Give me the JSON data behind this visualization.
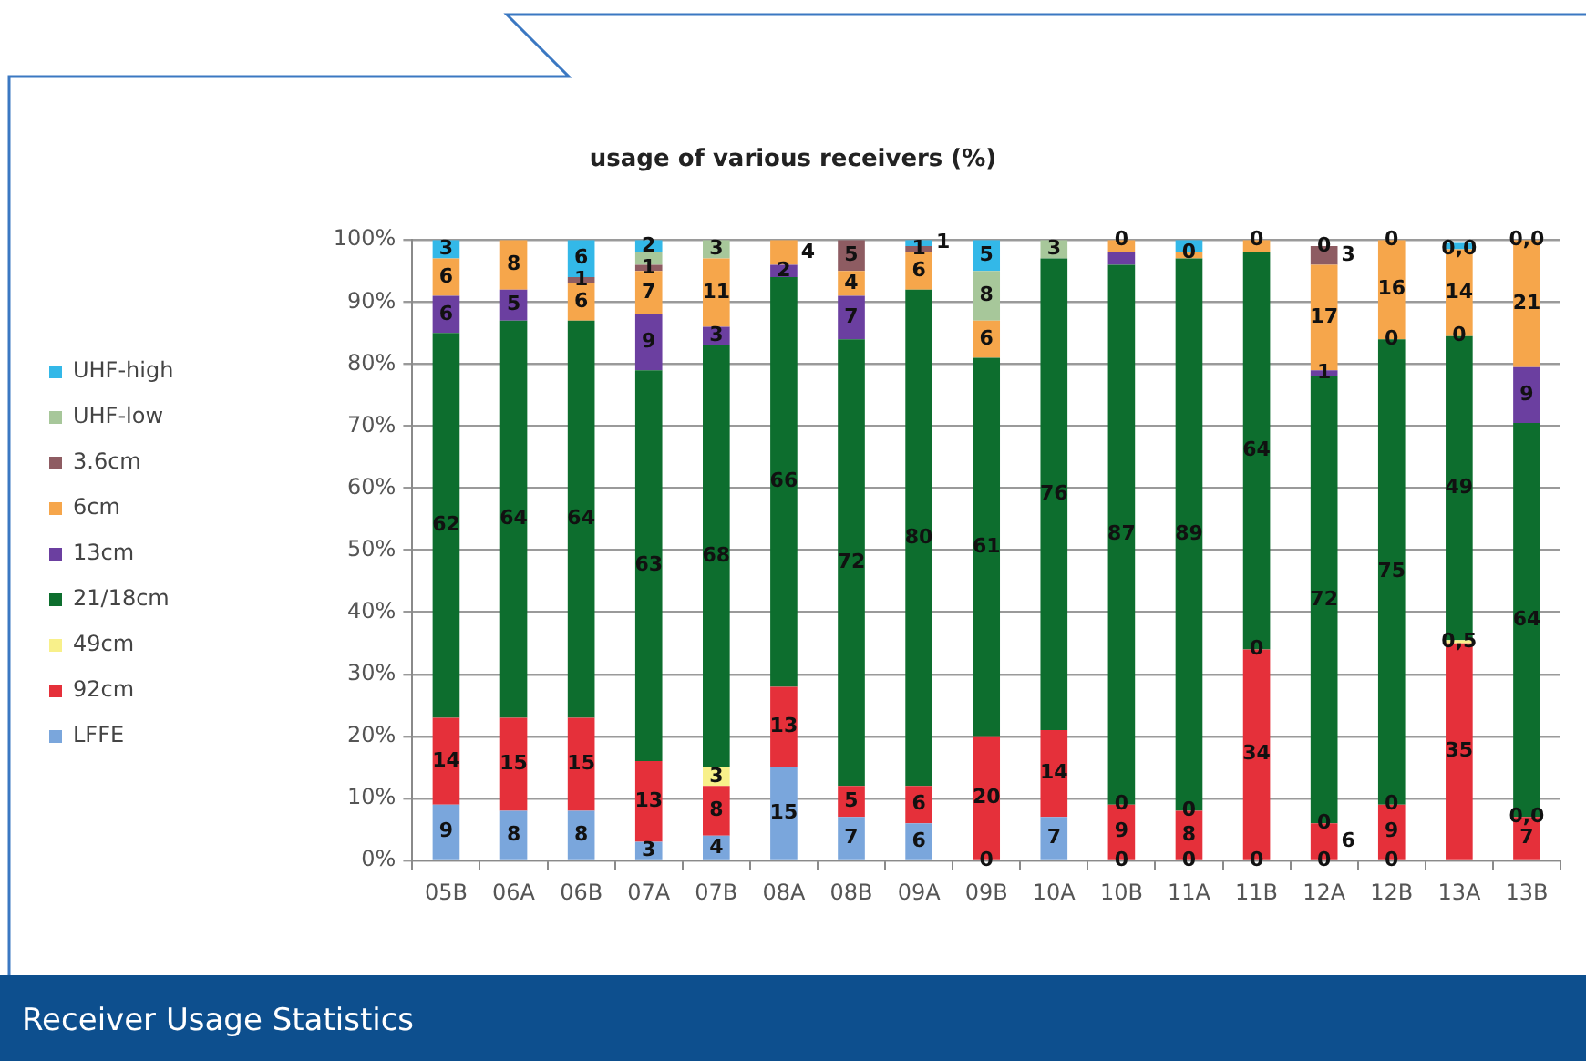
{
  "chart_data": {
    "type": "bar",
    "title": "usage of various receivers (%)",
    "categories": [
      "05B",
      "06A",
      "06B",
      "07A",
      "07B",
      "08A",
      "08B",
      "09A",
      "09B",
      "10A",
      "10B",
      "11A",
      "11B",
      "12A",
      "12B",
      "13A",
      "13B"
    ],
    "series": [
      {
        "name": "LFFE",
        "color": "#7aa6dc",
        "values": [
          9,
          8,
          8,
          3,
          4,
          15,
          7,
          6,
          0,
          7,
          0,
          0,
          0,
          0,
          0,
          null,
          null
        ],
        "value_labels": [
          "9",
          "8",
          "8",
          "3",
          "4",
          "15",
          "7",
          "6",
          null,
          "7",
          null,
          null,
          null,
          null,
          null,
          null,
          null
        ]
      },
      {
        "name": "92cm",
        "color": "#e5303a",
        "values": [
          14,
          15,
          15,
          13,
          8,
          13,
          5,
          6,
          20,
          14,
          9,
          8,
          34,
          6,
          9,
          35,
          7
        ],
        "value_labels": [
          "14",
          "15",
          "15",
          "13",
          "8",
          "13",
          "5",
          "6",
          "20",
          "14",
          "9",
          "8",
          "34",
          "6",
          "9",
          "35",
          "7"
        ]
      },
      {
        "name": "49cm",
        "color": "#f8f08a",
        "values": [
          null,
          null,
          null,
          null,
          3,
          null,
          null,
          null,
          null,
          null,
          0,
          0,
          0,
          0,
          0,
          0.5,
          0
        ],
        "value_labels": [
          null,
          null,
          null,
          null,
          "3",
          null,
          null,
          null,
          null,
          null,
          null,
          null,
          null,
          null,
          null,
          "0,5",
          null
        ]
      },
      {
        "name": "21/18cm",
        "color": "#0d6e2e",
        "values": [
          62,
          64,
          64,
          63,
          68,
          66,
          72,
          80,
          61,
          76,
          87,
          89,
          64,
          72,
          75,
          49,
          63.5
        ],
        "value_labels": [
          "62",
          "64",
          "64",
          "63",
          "68",
          "66",
          "72",
          "80",
          "61",
          "76",
          "87",
          "89",
          "64",
          "72",
          "75",
          "49",
          "64"
        ]
      },
      {
        "name": "13cm",
        "color": "#6b3fa0",
        "values": [
          6,
          5,
          null,
          9,
          3,
          2,
          7,
          null,
          null,
          null,
          2,
          null,
          null,
          1,
          0,
          0,
          9
        ],
        "value_labels": [
          "6",
          "5",
          null,
          "9",
          "3",
          "2",
          "7",
          null,
          null,
          null,
          null,
          null,
          null,
          "1",
          null,
          null,
          "9"
        ]
      },
      {
        "name": "6cm",
        "color": "#f6a64b",
        "values": [
          6,
          8,
          6,
          7,
          11,
          4,
          4,
          6,
          6,
          null,
          2,
          1,
          2,
          17,
          16,
          14,
          20.5
        ],
        "value_labels": [
          "6",
          "8",
          "6",
          "7",
          "11",
          "4",
          "4",
          "6",
          "6",
          null,
          null,
          null,
          null,
          "17",
          "16",
          "14",
          "21"
        ]
      },
      {
        "name": "3.6cm",
        "color": "#8e5c62",
        "values": [
          null,
          null,
          1,
          1,
          null,
          null,
          5,
          1,
          null,
          null,
          null,
          null,
          null,
          3,
          null,
          null,
          null
        ],
        "value_labels": [
          null,
          null,
          "1",
          "1",
          null,
          null,
          "5",
          "1",
          null,
          null,
          null,
          null,
          null,
          "3",
          null,
          null,
          null
        ]
      },
      {
        "name": "UHF-low",
        "color": "#a7c79a",
        "values": [
          null,
          null,
          null,
          2,
          3,
          null,
          null,
          null,
          8,
          3,
          null,
          0,
          null,
          null,
          null,
          0,
          null
        ],
        "value_labels": [
          null,
          null,
          null,
          null,
          "3",
          null,
          null,
          null,
          "8",
          "3",
          null,
          null,
          null,
          null,
          null,
          null,
          null
        ]
      },
      {
        "name": "UHF-high",
        "color": "#33b8e8",
        "values": [
          3,
          null,
          6,
          2,
          null,
          null,
          null,
          1,
          5,
          null,
          0,
          2,
          0,
          0,
          0,
          1,
          0
        ],
        "value_labels": [
          "3",
          null,
          "6",
          "2",
          null,
          null,
          null,
          "1",
          "5",
          null,
          null,
          null,
          null,
          null,
          null,
          null,
          null
        ]
      }
    ],
    "stacked": true,
    "ylim": [
      0,
      100
    ],
    "yticks": [
      {
        "value": 0,
        "label": "0%"
      },
      {
        "value": 10,
        "label": "10%"
      },
      {
        "value": 20,
        "label": "20%"
      },
      {
        "value": 30,
        "label": "30%"
      },
      {
        "value": 40,
        "label": "40%"
      },
      {
        "value": 50,
        "label": "50%"
      },
      {
        "value": 60,
        "label": "60%"
      },
      {
        "value": 70,
        "label": "70%"
      },
      {
        "value": 80,
        "label": "80%"
      },
      {
        "value": 90,
        "label": "90%"
      },
      {
        "value": 100,
        "label": "100%"
      }
    ],
    "grid": "y",
    "legend": "left",
    "annotations": [
      "Receiver Usage Statistics",
      {
        "text": "0",
        "x": "09B",
        "y": 0
      },
      {
        "text": "0",
        "x": "10B",
        "y": 0
      },
      {
        "text": "0",
        "x": "11A",
        "y": 0
      },
      {
        "text": "0",
        "x": "11B",
        "y": 0
      },
      {
        "text": "0",
        "x": "12A",
        "y": 0
      },
      {
        "text": "0",
        "x": "12B",
        "y": 0
      },
      {
        "text": "0",
        "x": "10B",
        "y": 9
      },
      {
        "text": "0",
        "x": "11A",
        "y": 8
      },
      {
        "text": "0",
        "x": "11B",
        "y": 34
      },
      {
        "text": "0",
        "x": "12A",
        "y": 6
      },
      {
        "text": "0",
        "x": "12B",
        "y": 9
      },
      {
        "text": "0,0",
        "x": "13B",
        "y": 7
      },
      {
        "text": "0",
        "x": "12B",
        "y": 84
      },
      {
        "text": "0",
        "x": "13A",
        "y": 84.5
      },
      {
        "text": "0",
        "x": "11A",
        "y": 98
      },
      {
        "text": "0,0",
        "x": "13A",
        "y": 98.5
      },
      {
        "text": "0",
        "x": "10B",
        "y": 100
      },
      {
        "text": "0",
        "x": "11B",
        "y": 100
      },
      {
        "text": "0",
        "x": "12A",
        "y": 99
      },
      {
        "text": "0",
        "x": "12B",
        "y": 100
      },
      {
        "text": "0,0",
        "x": "13B",
        "y": 100
      }
    ]
  }
}
